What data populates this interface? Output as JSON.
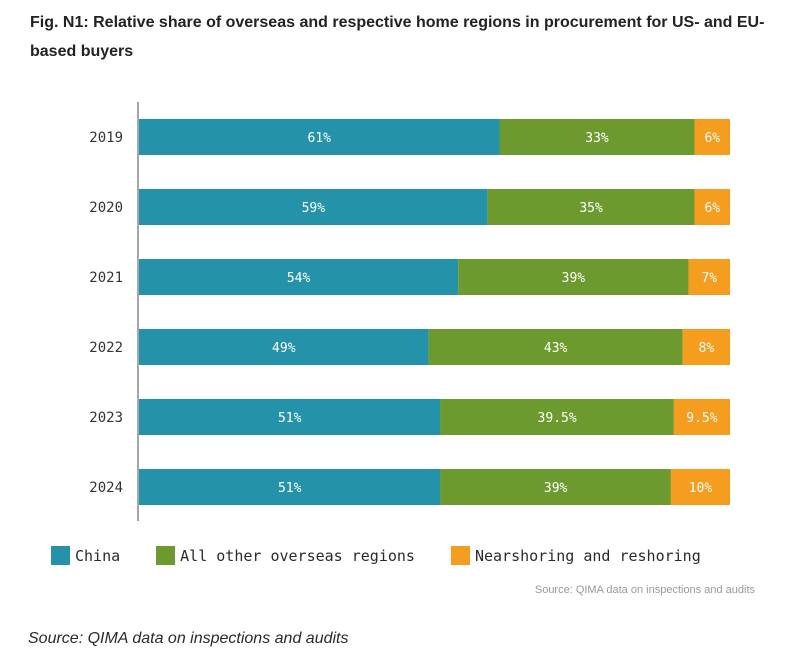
{
  "title": "Fig. N1: Relative share of overseas and respective home regions in procurement for US- and EU-based buyers",
  "inner_source": "Source: QIMA data on inspections and audits",
  "caption": "Source: QIMA data on inspections and audits",
  "chart_data": {
    "type": "bar",
    "orientation": "horizontal",
    "stacked": true,
    "normalized": true,
    "categories": [
      "2019",
      "2020",
      "2021",
      "2022",
      "2023",
      "2024"
    ],
    "series": [
      {
        "name": "China",
        "color": "#2492a8",
        "values": [
          61,
          59,
          54,
          49,
          51,
          51
        ],
        "labels": [
          "61%",
          "59%",
          "54%",
          "49%",
          "51%",
          "51%"
        ]
      },
      {
        "name": "All other overseas regions",
        "color": "#6d9a2e",
        "values": [
          33,
          35,
          39,
          43,
          39.5,
          39
        ],
        "labels": [
          "33%",
          "35%",
          "39%",
          "43%",
          "39.5%",
          "39%"
        ]
      },
      {
        "name": "Nearshoring and reshoring",
        "color": "#f59d1e",
        "values": [
          6,
          6,
          7,
          8,
          9.5,
          10
        ],
        "labels": [
          "6%",
          "6%",
          "7%",
          "8%",
          "9.5%",
          "10%"
        ]
      }
    ],
    "xlim": [
      0,
      100
    ],
    "grid": false,
    "legend_position": "bottom"
  }
}
